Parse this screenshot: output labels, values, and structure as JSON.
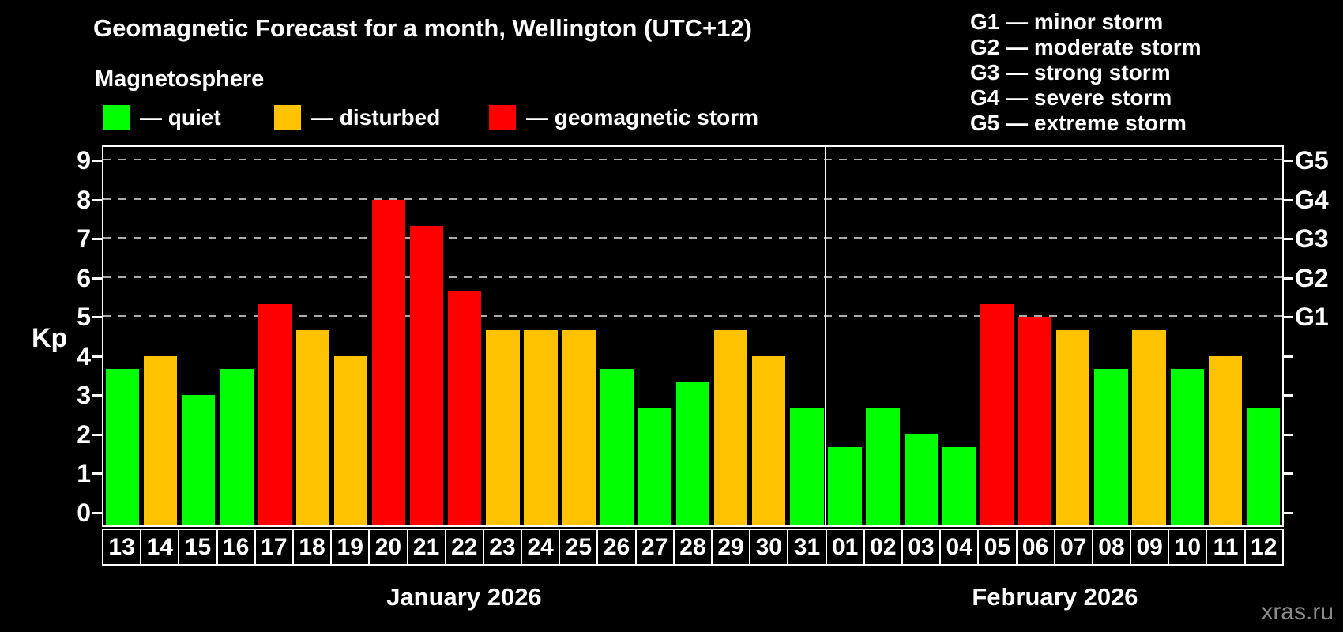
{
  "title": "Geomagnetic Forecast for a month, Wellington (UTC+12)",
  "subtitle": "Magnetosphere",
  "legend": {
    "quiet_label": "— quiet",
    "disturbed_label": "— disturbed",
    "storm_label": "— geomagnetic storm"
  },
  "g_legend": [
    "G1 — minor storm",
    "G2 — moderate storm",
    "G3 — strong storm",
    "G4 — severe storm",
    "G5 — extreme storm"
  ],
  "axis": {
    "ylabel": "Kp",
    "yticks": [
      0,
      1,
      2,
      3,
      4,
      5,
      6,
      7,
      8,
      9
    ],
    "right_labels": [
      {
        "kp": 5,
        "label": "G1"
      },
      {
        "kp": 6,
        "label": "G2"
      },
      {
        "kp": 7,
        "label": "G3"
      },
      {
        "kp": 8,
        "label": "G4"
      },
      {
        "kp": 9,
        "label": "G5"
      }
    ]
  },
  "watermark": "xras.ru",
  "colors": {
    "quiet": "#00ff00",
    "disturbed": "#ffc200",
    "storm": "#ff0000",
    "background": "#000000",
    "gridline": "#ababab",
    "frame": "#ffffff"
  },
  "chart_data": {
    "type": "bar",
    "title": "Geomagnetic Forecast for a month, Wellington (UTC+12)",
    "xlabel": "",
    "ylabel": "Kp",
    "ylim": [
      0,
      9
    ],
    "gridlines_at": [
      5,
      6,
      7,
      8,
      9
    ],
    "legend_position": "top-left",
    "months": [
      {
        "name": "January 2026",
        "days": 19
      },
      {
        "name": "February 2026",
        "days": 12
      }
    ],
    "categories": [
      "13",
      "14",
      "15",
      "16",
      "17",
      "18",
      "19",
      "20",
      "21",
      "22",
      "23",
      "24",
      "25",
      "26",
      "27",
      "28",
      "29",
      "30",
      "31",
      "01",
      "02",
      "03",
      "04",
      "05",
      "06",
      "07",
      "08",
      "09",
      "10",
      "11",
      "12"
    ],
    "values": [
      3.67,
      4,
      3,
      3.67,
      5.33,
      4.67,
      4,
      8,
      7.33,
      5.67,
      4.67,
      4.67,
      4.67,
      3.67,
      2.67,
      3.33,
      4.67,
      4,
      2.67,
      1.67,
      2.67,
      2,
      1.67,
      5.33,
      5,
      4.67,
      3.67,
      4.67,
      3.67,
      4,
      2.67
    ],
    "statuses": [
      "quiet",
      "disturbed",
      "quiet",
      "quiet",
      "storm",
      "disturbed",
      "disturbed",
      "storm",
      "storm",
      "storm",
      "disturbed",
      "disturbed",
      "disturbed",
      "quiet",
      "quiet",
      "quiet",
      "disturbed",
      "disturbed",
      "quiet",
      "quiet",
      "quiet",
      "quiet",
      "quiet",
      "storm",
      "storm",
      "disturbed",
      "quiet",
      "disturbed",
      "quiet",
      "disturbed",
      "quiet"
    ]
  }
}
